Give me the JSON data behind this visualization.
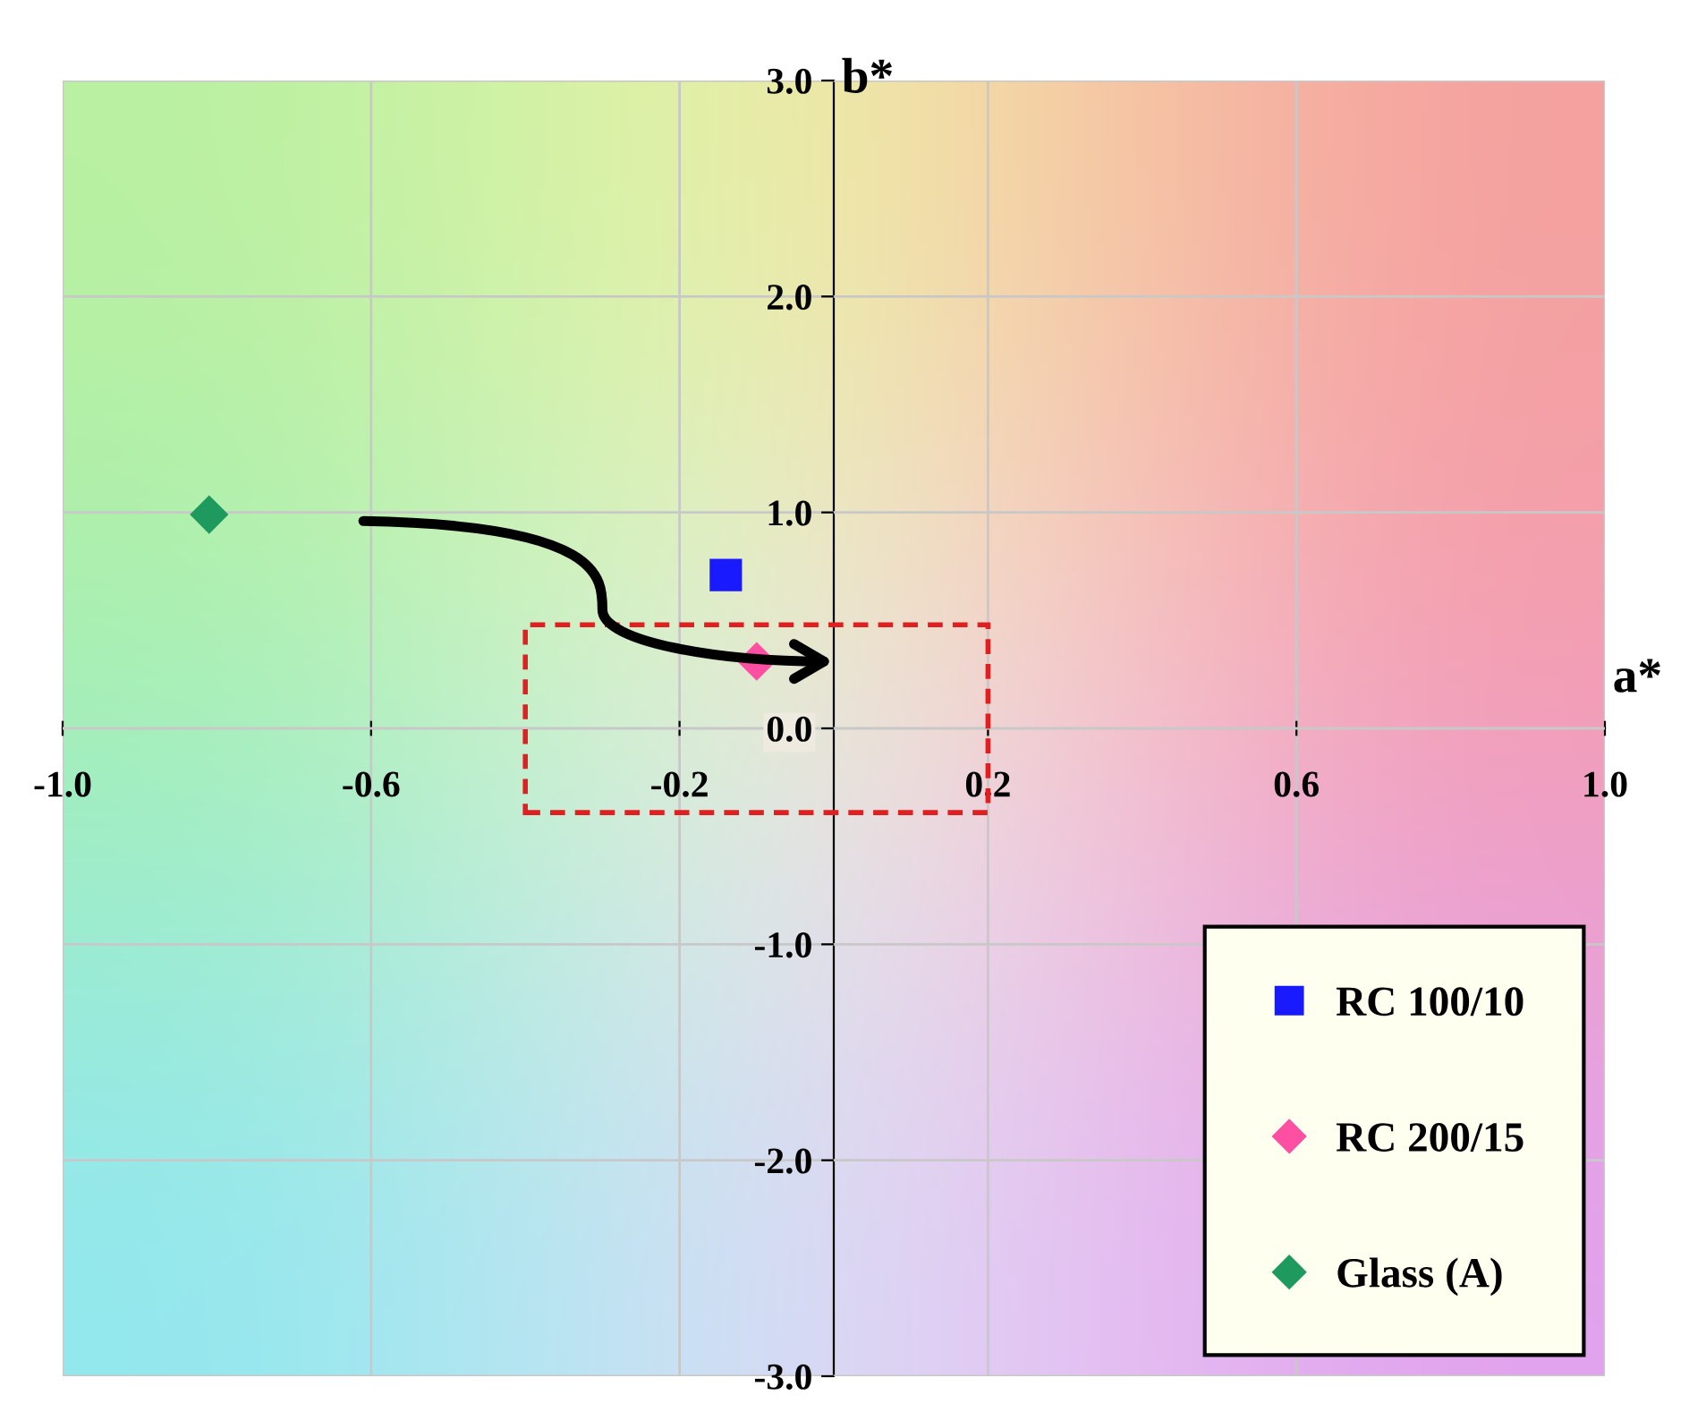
{
  "chart_data": {
    "type": "scatter",
    "xlabel": "a*",
    "ylabel": "b*",
    "xlim": [
      -1.0,
      1.0
    ],
    "xticks": [
      {
        "value": -1.0,
        "label": "-1.0"
      },
      {
        "value": -0.6,
        "label": "-0.6"
      },
      {
        "value": -0.2,
        "label": "-0.2"
      },
      {
        "value": 0.2,
        "label": "0.2"
      },
      {
        "value": 0.6,
        "label": "0.6"
      },
      {
        "value": 1.0,
        "label": "1.0"
      }
    ],
    "ylim": [
      -3.0,
      3.0
    ],
    "yticks": [
      {
        "value": -3.0,
        "label": "-3.0"
      },
      {
        "value": -2.0,
        "label": "-2.0"
      },
      {
        "value": -1.0,
        "label": "-1.0"
      },
      {
        "value": 0.0,
        "label": "0.0"
      },
      {
        "value": 1.0,
        "label": "1.0"
      },
      {
        "value": 2.0,
        "label": "2.0"
      },
      {
        "value": 3.0,
        "label": "3.0"
      }
    ],
    "grid": true,
    "legend": "bottom right",
    "series": [
      {
        "name": "RC 100/10",
        "color": "#1a1aff",
        "marker": "square",
        "x": [
          -0.14
        ],
        "values": [
          0.71
        ]
      },
      {
        "name": "RC 200/15",
        "color": "#ff4fa3",
        "marker": "diamond",
        "x": [
          -0.1
        ],
        "values": [
          0.31
        ]
      },
      {
        "name": "Glass (A)",
        "color": "#1f9a5f",
        "marker": "diamond",
        "x": [
          -0.81
        ],
        "values": [
          0.99
        ]
      }
    ]
  }
}
